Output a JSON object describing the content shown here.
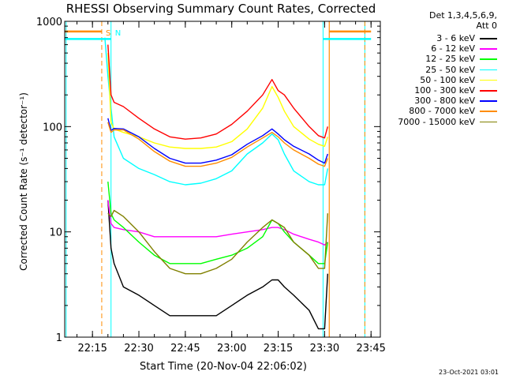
{
  "chart_data": {
    "type": "line",
    "title": "RHESSI Observing Summary Count Rates, Corrected",
    "xlabel": "Start Time (20-Nov-04 22:06:02)",
    "ylabel": "Corrected Count Rate (s⁻¹ detector⁻¹)",
    "y_scale": "log",
    "ylim": [
      1,
      1000
    ],
    "xlim": [
      "22:06:02",
      "23:48:00"
    ],
    "x_ticks": [
      "22:15",
      "22:30",
      "22:45",
      "23:00",
      "23:15",
      "23:30",
      "23:45"
    ],
    "y_ticks": [
      "1",
      "10",
      "100",
      "1000"
    ],
    "grid": false,
    "legend_position": "right",
    "legend_header": [
      "Det 1,3,4,5,6,9,",
      "Att 0"
    ],
    "annotations": [
      {
        "text": "S",
        "time": "22:18:00",
        "color": "#ff8c00"
      },
      {
        "text": "N",
        "time": "22:21:00",
        "color": "#00ffff"
      }
    ],
    "markers": {
      "cyan_lines": [
        "22:06:30",
        "22:21:00",
        "23:29:30",
        "23:43:00"
      ],
      "orange_dashed": [
        "22:18:00",
        "23:43:00"
      ],
      "orange_solid": [
        "23:31:30"
      ]
    },
    "segments": [
      {
        "name": "S",
        "color": "#ff8c00",
        "from": "22:06:02",
        "to": "22:18:00",
        "y": 800
      },
      {
        "name": "S",
        "color": "#ff8c00",
        "from": "23:31:30",
        "to": "23:45:00",
        "y": 800
      },
      {
        "name": "N",
        "color": "#00ffff",
        "from": "22:06:02",
        "to": "22:21:00",
        "y": 680
      },
      {
        "name": "N",
        "color": "#00ffff",
        "from": "23:29:30",
        "to": "23:45:00",
        "y": 680
      }
    ],
    "x": [
      "22:19",
      "22:20",
      "22:21",
      "22:22",
      "22:25",
      "22:30",
      "22:35",
      "22:40",
      "22:45",
      "22:50",
      "22:55",
      "23:00",
      "23:05",
      "23:10",
      "23:13",
      "23:15",
      "23:17",
      "23:20",
      "23:25",
      "23:28",
      "23:30",
      "23:31"
    ],
    "series": [
      {
        "name": "3 - 6 keV",
        "color": "#000000",
        "values": [
          null,
          20,
          7,
          5,
          3,
          2.5,
          2,
          1.6,
          1.6,
          1.6,
          1.6,
          2,
          2.5,
          3,
          3.5,
          3.5,
          3,
          2.5,
          1.8,
          1.2,
          1.2,
          4
        ]
      },
      {
        "name": "6 - 12 keV",
        "color": "#ff00ff",
        "values": [
          null,
          20,
          12,
          11,
          10.5,
          10,
          9,
          9,
          9,
          9,
          9,
          9.5,
          10,
          10.5,
          11,
          11,
          10.5,
          9.5,
          8.5,
          8,
          7.5,
          8
        ]
      },
      {
        "name": "12 - 25 keV",
        "color": "#00ff00",
        "values": [
          null,
          30,
          15,
          13,
          11,
          8,
          6,
          5,
          5,
          5,
          5.5,
          6,
          7,
          9,
          13,
          12,
          10,
          8,
          6,
          5,
          5,
          8
        ]
      },
      {
        "name": "25 - 50 keV",
        "color": "#00ffff",
        "values": [
          700,
          300,
          150,
          80,
          50,
          40,
          35,
          30,
          28,
          29,
          32,
          38,
          55,
          70,
          85,
          75,
          55,
          38,
          30,
          28,
          28,
          40
        ]
      },
      {
        "name": "50 - 100 keV",
        "color": "#ffff00",
        "values": [
          null,
          500,
          110,
          95,
          88,
          80,
          70,
          64,
          62,
          62,
          64,
          72,
          95,
          150,
          240,
          190,
          140,
          100,
          76,
          68,
          65,
          80
        ]
      },
      {
        "name": "100 - 300 keV",
        "color": "#ff0000",
        "values": [
          null,
          600,
          200,
          170,
          155,
          120,
          95,
          80,
          76,
          78,
          85,
          105,
          140,
          200,
          280,
          220,
          200,
          150,
          100,
          82,
          78,
          100
        ]
      },
      {
        "name": "300 - 800 keV",
        "color": "#0000ff",
        "values": [
          null,
          120,
          92,
          96,
          95,
          80,
          62,
          50,
          45,
          45,
          48,
          54,
          68,
          82,
          95,
          85,
          75,
          65,
          55,
          48,
          45,
          55
        ]
      },
      {
        "name": "800 - 7000 keV",
        "color": "#ff8c00",
        "values": [
          null,
          110,
          88,
          93,
          93,
          76,
          58,
          47,
          42,
          42,
          45,
          51,
          64,
          78,
          88,
          80,
          70,
          60,
          50,
          44,
          42,
          50
        ]
      },
      {
        "name": "7000 - 15000 keV",
        "color": "#808000",
        "values": [
          null,
          15,
          14,
          16,
          14,
          10,
          6.5,
          4.5,
          4,
          4,
          4.5,
          5.5,
          8,
          11,
          13,
          12,
          11,
          8,
          6,
          4.5,
          4.5,
          15
        ]
      }
    ]
  },
  "footer": {
    "date": "23-Oct-2021 03:01"
  }
}
